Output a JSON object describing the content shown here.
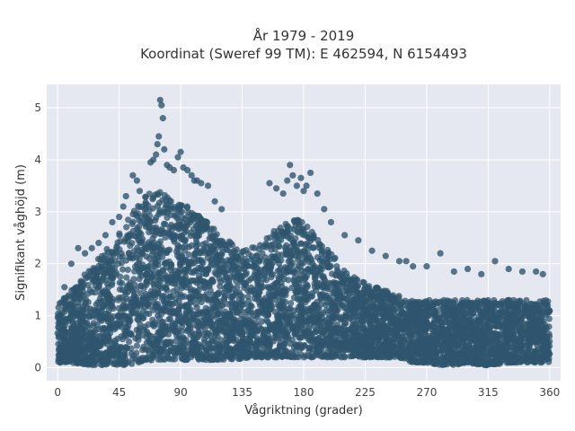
{
  "chart_data": {
    "type": "scatter",
    "title": "År 1979 - 2019",
    "subtitle": "Koordinat (Sweref 99 TM): E 462594, N 6154493",
    "xlabel": "Vågriktning (grader)",
    "ylabel": "Signifikant våghöjd (m)",
    "xlim": [
      -8,
      368
    ],
    "ylim": [
      -0.25,
      5.45
    ],
    "xticks": [
      0,
      45,
      90,
      135,
      180,
      225,
      270,
      315,
      360
    ],
    "yticks": [
      0,
      1,
      2,
      3,
      4,
      5
    ],
    "grid": true,
    "colors": {
      "marker": "#2f556e",
      "plot_bg": "#e5e8f0",
      "grid": "#ffffff"
    },
    "density_envelope": {
      "x": [
        0,
        10,
        20,
        30,
        40,
        50,
        60,
        70,
        80,
        90,
        100,
        110,
        120,
        130,
        140,
        150,
        160,
        170,
        180,
        190,
        200,
        210,
        220,
        230,
        240,
        250,
        260,
        270,
        280,
        290,
        300,
        310,
        320,
        330,
        340,
        350,
        360
      ],
      "y_min": [
        0.1,
        0.1,
        0.05,
        0.05,
        0.05,
        0.05,
        0.1,
        0.15,
        0.15,
        0.15,
        0.15,
        0.15,
        0.15,
        0.15,
        0.2,
        0.2,
        0.2,
        0.2,
        0.2,
        0.2,
        0.2,
        0.2,
        0.2,
        0.2,
        0.2,
        0.2,
        0.1,
        0.1,
        0.05,
        0.05,
        0.1,
        0.05,
        0.05,
        0.1,
        0.1,
        0.1,
        0.1
      ],
      "y_max": [
        1.2,
        1.5,
        1.8,
        2.1,
        2.4,
        2.8,
        3.2,
        3.5,
        3.3,
        3.2,
        3.0,
        2.8,
        2.5,
        2.4,
        2.3,
        2.4,
        2.7,
        2.9,
        2.8,
        2.5,
        2.2,
        1.9,
        1.7,
        1.6,
        1.5,
        1.4,
        1.3,
        1.3,
        1.3,
        1.3,
        1.3,
        1.3,
        1.3,
        1.3,
        1.3,
        1.3,
        1.3
      ]
    },
    "outliers": {
      "x": [
        75,
        76,
        77,
        74,
        73,
        78,
        72,
        70,
        68,
        80,
        82,
        85,
        88,
        90,
        92,
        95,
        98,
        100,
        102,
        105,
        110,
        115,
        120,
        60,
        58,
        55,
        50,
        48,
        45,
        40,
        35,
        30,
        20,
        10,
        155,
        160,
        165,
        168,
        170,
        172,
        175,
        178,
        180,
        182,
        185,
        190,
        195,
        200,
        210,
        220,
        230,
        240,
        250,
        255,
        260,
        270,
        280,
        290,
        300,
        310,
        320,
        330,
        340,
        350,
        355,
        5,
        15,
        25
      ],
      "y": [
        5.15,
        5.05,
        4.8,
        4.45,
        4.3,
        4.2,
        4.1,
        4.0,
        3.95,
        3.9,
        3.85,
        3.8,
        4.05,
        4.15,
        3.85,
        3.8,
        3.7,
        3.6,
        3.6,
        3.55,
        3.5,
        3.2,
        3.05,
        3.4,
        3.6,
        3.7,
        3.3,
        3.1,
        2.9,
        2.8,
        2.55,
        2.4,
        2.2,
        2.0,
        3.55,
        3.45,
        3.35,
        3.6,
        3.9,
        3.7,
        3.5,
        3.65,
        3.4,
        3.5,
        3.75,
        3.35,
        3.05,
        2.8,
        2.55,
        2.45,
        2.25,
        2.15,
        2.05,
        2.05,
        1.95,
        1.95,
        2.2,
        1.85,
        1.9,
        1.8,
        2.05,
        1.9,
        1.85,
        1.85,
        1.8,
        1.55,
        2.3,
        2.3
      ]
    }
  }
}
